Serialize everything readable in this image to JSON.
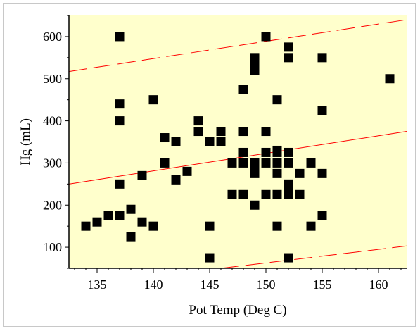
{
  "chart_data": {
    "type": "scatter",
    "xlabel": "Pot Temp (Deg C)",
    "ylabel": "Hg (mL)",
    "xlim": [
      132.5,
      162.5
    ],
    "ylim": [
      50,
      650
    ],
    "xticks": [
      135,
      140,
      145,
      150,
      155,
      160
    ],
    "yticks": [
      100,
      200,
      300,
      400,
      500,
      600
    ],
    "x_tick_labels": [
      "135",
      "140",
      "145",
      "150",
      "155",
      "160"
    ],
    "y_tick_labels": [
      "100",
      "200",
      "300",
      "400",
      "500",
      "600"
    ],
    "grid": false,
    "legend": "none",
    "background_color": "#ffffcc",
    "marker_color": "#000000",
    "line_color": "#ff0000",
    "series": [
      {
        "points": [
          [
            134,
            150
          ],
          [
            135,
            160
          ],
          [
            136,
            175
          ],
          [
            137,
            175
          ],
          [
            137,
            250
          ],
          [
            137,
            400
          ],
          [
            137,
            440
          ],
          [
            137,
            600
          ],
          [
            138,
            125
          ],
          [
            138,
            190
          ],
          [
            139,
            160
          ],
          [
            139,
            270
          ],
          [
            140,
            150
          ],
          [
            140,
            450
          ],
          [
            141,
            300
          ],
          [
            141,
            360
          ],
          [
            142,
            260
          ],
          [
            142,
            350
          ],
          [
            143,
            280
          ],
          [
            144,
            375
          ],
          [
            144,
            400
          ],
          [
            145,
            75
          ],
          [
            145,
            150
          ],
          [
            145,
            350
          ],
          [
            146,
            350
          ],
          [
            146,
            375
          ],
          [
            147,
            225
          ],
          [
            147,
            300
          ],
          [
            148,
            225
          ],
          [
            148,
            300
          ],
          [
            148,
            325
          ],
          [
            148,
            375
          ],
          [
            148,
            475
          ],
          [
            149,
            200
          ],
          [
            149,
            275
          ],
          [
            149,
            290
          ],
          [
            149,
            300
          ],
          [
            149,
            520
          ],
          [
            149,
            535
          ],
          [
            149,
            550
          ],
          [
            150,
            225
          ],
          [
            150,
            300
          ],
          [
            150,
            325
          ],
          [
            150,
            375
          ],
          [
            150,
            600
          ],
          [
            151,
            150
          ],
          [
            151,
            225
          ],
          [
            151,
            275
          ],
          [
            151,
            300
          ],
          [
            151,
            325
          ],
          [
            151,
            330
          ],
          [
            151,
            450
          ],
          [
            152,
            75
          ],
          [
            152,
            225
          ],
          [
            152,
            235
          ],
          [
            152,
            250
          ],
          [
            152,
            300
          ],
          [
            152,
            325
          ],
          [
            152,
            550
          ],
          [
            152,
            575
          ],
          [
            153,
            225
          ],
          [
            153,
            275
          ],
          [
            154,
            150
          ],
          [
            154,
            300
          ],
          [
            155,
            175
          ],
          [
            155,
            275
          ],
          [
            155,
            425
          ],
          [
            155,
            550
          ],
          [
            161,
            500
          ]
        ]
      }
    ],
    "fit_line": {
      "x": [
        132.5,
        162.5
      ],
      "y": [
        250,
        375
      ]
    },
    "upper_band": {
      "x": [
        132.5,
        162.5
      ],
      "y": [
        517,
        640
      ]
    },
    "lower_band": {
      "x": [
        146,
        162.5
      ],
      "y": [
        50,
        103
      ]
    }
  }
}
